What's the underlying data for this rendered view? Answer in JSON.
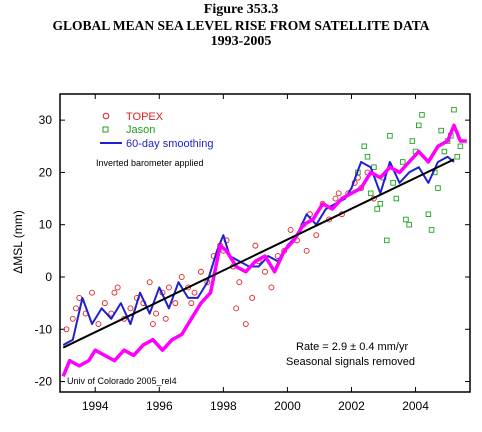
{
  "figure_label": "Figure 353.3",
  "main_title": "GLOBAL MEAN SEA LEVEL RISE FROM SATELLITE DATA",
  "years": "1993-2005",
  "chart_data": {
    "type": "scatter",
    "ylabel": "ΔMSL  (mm)",
    "xlabel": "",
    "xlim": [
      1992.9,
      2005.7
    ],
    "ylim": [
      -22,
      35
    ],
    "xticks": [
      1994,
      1996,
      1998,
      2000,
      2002,
      2004
    ],
    "yticks": [
      -20,
      -10,
      0,
      10,
      20,
      30
    ],
    "grid": false,
    "legend": [
      {
        "label": "TOPEX",
        "color": "#e02020",
        "marker": "circle"
      },
      {
        "label": "Jason",
        "color": "#20a020",
        "marker": "square"
      },
      {
        "label": "60-day smoothing",
        "color": "#2020d0",
        "marker": "line"
      }
    ],
    "legend_position": "top-left",
    "annotations": {
      "barometer": "Inverted barometer applied",
      "rate": "Rate = 2.9 ± 0.4 mm/yr",
      "seasonal": "Seasonal signals removed",
      "credit": "Univ of Colorado 2005_rel4"
    },
    "trend": {
      "x": [
        1993.0,
        2005.2
      ],
      "y": [
        -13.5,
        22.5
      ],
      "color": "#000000"
    },
    "series": [
      {
        "name": "60-day smoothing",
        "color": "#2020d0",
        "x": [
          1993.0,
          1993.3,
          1993.6,
          1993.9,
          1994.2,
          1994.5,
          1994.8,
          1995.1,
          1995.4,
          1995.7,
          1996.0,
          1996.3,
          1996.6,
          1996.9,
          1997.2,
          1997.5,
          1997.8,
          1998.0,
          1998.2,
          1998.5,
          1998.8,
          1999.1,
          1999.4,
          1999.7,
          2000.0,
          2000.3,
          2000.6,
          2000.9,
          2001.2,
          2001.5,
          2001.8,
          2002.0,
          2002.3,
          2002.6,
          2002.9,
          2003.2,
          2003.5,
          2003.8,
          2004.1,
          2004.4,
          2004.7,
          2005.0,
          2005.2
        ],
        "y": [
          -13,
          -12,
          -4,
          -9,
          -6,
          -8,
          -5,
          -9,
          -3,
          -7,
          -2,
          -6,
          -1,
          -4,
          -4,
          -1,
          5,
          8,
          4,
          3,
          2,
          2,
          4,
          3,
          6,
          8,
          12,
          10,
          13,
          14,
          15,
          17,
          22,
          21,
          16,
          22,
          18,
          20,
          21,
          18,
          22,
          23,
          22
        ]
      },
      {
        "name": "",
        "color": "#ff00ff",
        "x": [
          1993.0,
          1993.2,
          1993.5,
          1993.8,
          1994.0,
          1994.3,
          1994.6,
          1994.9,
          1995.2,
          1995.5,
          1995.8,
          1996.1,
          1996.4,
          1996.7,
          1997.0,
          1997.3,
          1997.6,
          1997.9,
          1998.1,
          1998.4,
          1998.7,
          1999.0,
          1999.3,
          1999.6,
          1999.9,
          2000.2,
          2000.5,
          2000.8,
          2001.1,
          2001.4,
          2001.7,
          2002.0,
          2002.3,
          2002.6,
          2002.9,
          2003.2,
          2003.5,
          2003.8,
          2004.1,
          2004.4,
          2004.7,
          2005.0,
          2005.2,
          2005.4,
          2005.6
        ],
        "y": [
          -19,
          -16,
          -17,
          -16,
          -14,
          -15,
          -16,
          -14,
          -15,
          -13,
          -12,
          -14,
          -12,
          -11,
          -8,
          -5,
          -3,
          6,
          5,
          2,
          1,
          3,
          4,
          1,
          5,
          7,
          10,
          11,
          14,
          13,
          15,
          16,
          17,
          20,
          19,
          21,
          20,
          22,
          24,
          22,
          25,
          26,
          29,
          26,
          26
        ]
      },
      {
        "name": "TOPEX",
        "color": "#e02020",
        "marker": "circle",
        "x": [
          1993.1,
          1993.3,
          1993.5,
          1993.7,
          1993.9,
          1994.1,
          1994.3,
          1994.5,
          1994.7,
          1994.9,
          1995.1,
          1995.3,
          1995.5,
          1995.7,
          1995.9,
          1996.1,
          1996.3,
          1996.5,
          1996.7,
          1996.9,
          1997.1,
          1997.3,
          1997.5,
          1997.7,
          1997.9,
          1998.1,
          1998.3,
          1998.5,
          1998.7,
          1998.9,
          1999.1,
          1999.3,
          1999.5,
          1999.7,
          1999.9,
          2000.1,
          2000.3,
          2000.5,
          2000.7,
          2000.9,
          2001.1,
          2001.3,
          2001.5,
          2001.7,
          2001.9,
          2002.1,
          2002.3,
          2002.5,
          2002.7,
          1993.4,
          1994.6,
          1995.8,
          1997.0,
          1998.4,
          1999.0,
          2000.6,
          2001.6,
          2002.2,
          1996.2,
          1998.0
        ],
        "y": [
          -10,
          -8,
          -4,
          -7,
          -3,
          -9,
          -5,
          -7,
          -2,
          -8,
          -6,
          -4,
          -5,
          -1,
          -7,
          -3,
          -2,
          -5,
          0,
          -2,
          -3,
          1,
          -1,
          4,
          6,
          7,
          2,
          -1,
          -9,
          -4,
          3,
          1,
          -2,
          4,
          5,
          9,
          7,
          10,
          12,
          8,
          14,
          11,
          15,
          12,
          16,
          18,
          17,
          20,
          15,
          -6,
          -3,
          -9,
          -5,
          -6,
          6,
          5,
          16,
          19,
          -8,
          5
        ]
      },
      {
        "name": "Jason",
        "color": "#20a020",
        "marker": "square",
        "x": [
          2002.2,
          2002.4,
          2002.6,
          2002.8,
          2003.0,
          2003.2,
          2003.4,
          2003.6,
          2003.8,
          2004.0,
          2004.2,
          2004.4,
          2004.6,
          2004.8,
          2005.0,
          2005.2,
          2005.4,
          2002.5,
          2002.9,
          2003.3,
          2003.7,
          2004.1,
          2004.5,
          2004.9,
          2005.3,
          2003.1,
          2003.9,
          2004.7,
          2002.7,
          2005.1
        ],
        "y": [
          20,
          25,
          16,
          13,
          19,
          27,
          15,
          22,
          10,
          24,
          31,
          12,
          20,
          28,
          26,
          32,
          25,
          23,
          14,
          18,
          11,
          29,
          9,
          24,
          23,
          7,
          26,
          17,
          21,
          27
        ]
      }
    ]
  }
}
